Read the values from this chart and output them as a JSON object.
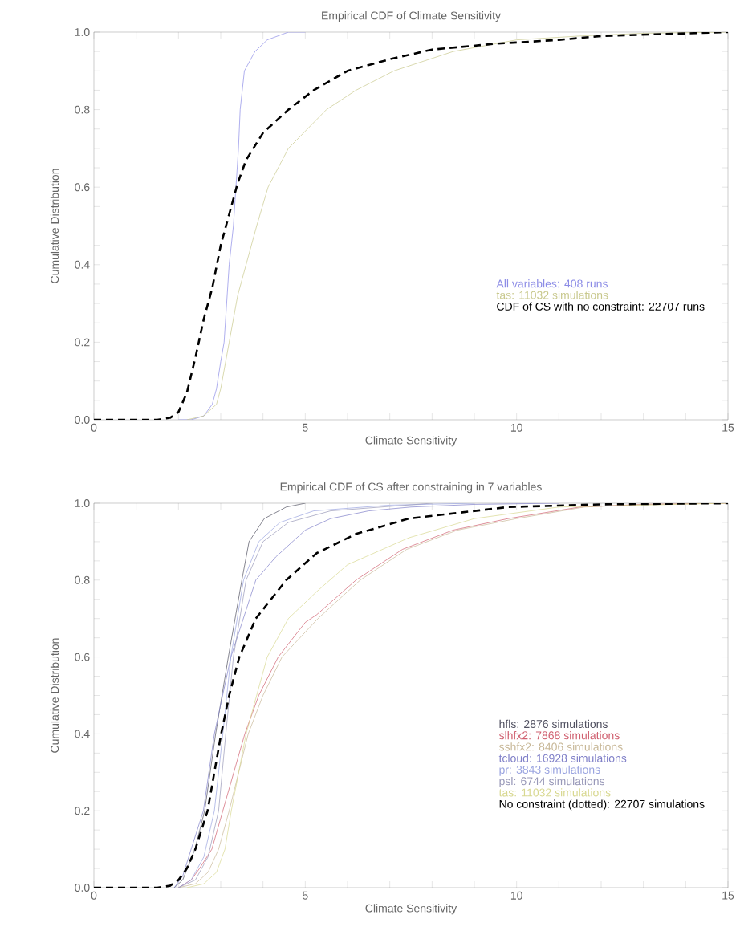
{
  "chart_data": [
    {
      "type": "line",
      "title": "Empirical CDF of Climate Sensitivity",
      "xlabel": "Climate Sensitivity",
      "ylabel": "Cumulative Distribution",
      "xlim": [
        0,
        15
      ],
      "ylim": [
        0,
        1
      ],
      "xticks": [
        0,
        {
          "value": 1,
          "label": null
        },
        {
          "value": 2,
          "label": null
        },
        {
          "value": 3,
          "label": null
        },
        {
          "value": 4,
          "label": null
        },
        5,
        {
          "value": 6,
          "label": null
        },
        {
          "value": 7,
          "label": null
        },
        {
          "value": 8,
          "label": null
        },
        {
          "value": 9,
          "label": null
        },
        10,
        {
          "value": 11,
          "label": null
        },
        {
          "value": 12,
          "label": null
        },
        {
          "value": 13,
          "label": null
        },
        {
          "value": 14,
          "label": null
        },
        15
      ],
      "yticks": [
        {
          "value": 0,
          "label": "0.0"
        },
        {
          "value": 0.05,
          "label": null
        },
        {
          "value": 0.1,
          "label": null
        },
        {
          "value": 0.15,
          "label": null
        },
        {
          "value": 0.2,
          "label": "0.2"
        },
        {
          "value": 0.25,
          "label": null
        },
        {
          "value": 0.3,
          "label": null
        },
        {
          "value": 0.35,
          "label": null
        },
        {
          "value": 0.4,
          "label": "0.4"
        },
        {
          "value": 0.45,
          "label": null
        },
        {
          "value": 0.5,
          "label": null
        },
        {
          "value": 0.55,
          "label": null
        },
        {
          "value": 0.6,
          "label": "0.6"
        },
        {
          "value": 0.65,
          "label": null
        },
        {
          "value": 0.7,
          "label": null
        },
        {
          "value": 0.75,
          "label": null
        },
        {
          "value": 0.8,
          "label": "0.8"
        },
        {
          "value": 0.85,
          "label": null
        },
        {
          "value": 0.9,
          "label": null
        },
        {
          "value": 0.95,
          "label": null
        },
        {
          "value": 1,
          "label": "1.0"
        }
      ],
      "legend": "center right",
      "series": [
        {
          "name": "All variables: 408 runs",
          "color": "#8c8ce6",
          "line_style": "solid",
          "x": [
            2.0,
            2.3,
            2.6,
            2.8,
            2.9,
            3.0,
            3.08,
            3.2,
            3.3,
            3.36,
            3.42,
            3.46,
            3.56,
            3.81,
            4.1,
            4.6,
            5.0
          ],
          "values": [
            0,
            0,
            0.01,
            0.04,
            0.08,
            0.15,
            0.2,
            0.4,
            0.5,
            0.6,
            0.7,
            0.8,
            0.9,
            0.95,
            0.98,
            1.0,
            1.0
          ]
        },
        {
          "name": "tas: 11032 simulations",
          "color": "#c8c88c",
          "line_style": "solid",
          "x": [
            2.2,
            2.6,
            2.9,
            3.0,
            3.2,
            3.4,
            3.6,
            3.85,
            4.12,
            4.6,
            5.5,
            6.2,
            7.1,
            8.5,
            10,
            11.5,
            13,
            15
          ],
          "values": [
            0,
            0.01,
            0.04,
            0.08,
            0.2,
            0.32,
            0.4,
            0.5,
            0.6,
            0.7,
            0.8,
            0.85,
            0.9,
            0.95,
            0.98,
            0.99,
            0.997,
            1.0
          ]
        },
        {
          "name": "CDF of CS with no constraint: 22707 runs",
          "color": "#000000",
          "line_style": "dashed",
          "x": [
            0,
            1.5,
            1.8,
            2.0,
            2.2,
            2.4,
            2.6,
            2.8,
            3.0,
            3.2,
            3.4,
            3.6,
            4.0,
            4.6,
            5.2,
            6,
            7,
            8,
            9.5,
            11,
            12,
            13.5,
            15
          ],
          "values": [
            0,
            0,
            0.005,
            0.02,
            0.07,
            0.16,
            0.26,
            0.34,
            0.45,
            0.53,
            0.61,
            0.67,
            0.74,
            0.8,
            0.85,
            0.9,
            0.93,
            0.955,
            0.97,
            0.98,
            0.99,
            0.995,
            1.0
          ]
        }
      ]
    },
    {
      "type": "line",
      "title": "Empirical CDF of CS after constraining in 7 variables",
      "xlabel": "Climate Sensitivity",
      "ylabel": "Cumulative Distribution",
      "xlim": [
        0,
        15
      ],
      "ylim": [
        0,
        1
      ],
      "xticks": [
        0,
        {
          "value": 1,
          "label": null
        },
        {
          "value": 2,
          "label": null
        },
        {
          "value": 3,
          "label": null
        },
        {
          "value": 4,
          "label": null
        },
        5,
        {
          "value": 6,
          "label": null
        },
        {
          "value": 7,
          "label": null
        },
        {
          "value": 8,
          "label": null
        },
        {
          "value": 9,
          "label": null
        },
        10,
        {
          "value": 11,
          "label": null
        },
        {
          "value": 12,
          "label": null
        },
        {
          "value": 13,
          "label": null
        },
        {
          "value": 14,
          "label": null
        },
        15
      ],
      "yticks": [
        {
          "value": 0,
          "label": "0.0"
        },
        {
          "value": 0.05,
          "label": null
        },
        {
          "value": 0.1,
          "label": null
        },
        {
          "value": 0.15,
          "label": null
        },
        {
          "value": 0.2,
          "label": "0.2"
        },
        {
          "value": 0.25,
          "label": null
        },
        {
          "value": 0.3,
          "label": null
        },
        {
          "value": 0.35,
          "label": null
        },
        {
          "value": 0.4,
          "label": "0.4"
        },
        {
          "value": 0.45,
          "label": null
        },
        {
          "value": 0.5,
          "label": null
        },
        {
          "value": 0.55,
          "label": null
        },
        {
          "value": 0.6,
          "label": "0.6"
        },
        {
          "value": 0.65,
          "label": null
        },
        {
          "value": 0.7,
          "label": null
        },
        {
          "value": 0.75,
          "label": null
        },
        {
          "value": 0.8,
          "label": "0.8"
        },
        {
          "value": 0.85,
          "label": null
        },
        {
          "value": 0.9,
          "label": null
        },
        {
          "value": 0.95,
          "label": null
        },
        {
          "value": 1,
          "label": "1.0"
        }
      ],
      "legend": "center right",
      "series": [
        {
          "name": "hfls: 2876 simulations",
          "color": "#505060",
          "line_style": "solid",
          "x": [
            1.9,
            2.1,
            2.39,
            2.62,
            2.88,
            3.18,
            3.5,
            3.67,
            4.03,
            4.55,
            5.0
          ],
          "values": [
            0,
            0.02,
            0.1,
            0.2,
            0.4,
            0.6,
            0.8,
            0.9,
            0.96,
            0.99,
            1.0
          ]
        },
        {
          "name": "slhfx2: 7868 simulations",
          "color": "#d06070",
          "line_style": "solid",
          "x": [
            2.0,
            2.3,
            2.5,
            2.79,
            3.05,
            3.57,
            3.9,
            4.36,
            5.0,
            5.27,
            6.2,
            7.3,
            8.5,
            9.8,
            11.5,
            13,
            15
          ],
          "values": [
            0,
            0.02,
            0.05,
            0.1,
            0.2,
            0.4,
            0.5,
            0.6,
            0.69,
            0.71,
            0.8,
            0.88,
            0.93,
            0.96,
            0.99,
            0.997,
            1.0
          ]
        },
        {
          "name": "sshfx2: 8406 simulations",
          "color": "#c8b898",
          "line_style": "solid",
          "x": [
            2.0,
            2.4,
            2.7,
            2.95,
            3.2,
            3.65,
            4.0,
            4.45,
            5.3,
            6.3,
            7.4,
            8.6,
            10,
            11.6,
            13,
            15
          ],
          "values": [
            0,
            0.01,
            0.04,
            0.1,
            0.2,
            0.4,
            0.5,
            0.6,
            0.7,
            0.8,
            0.88,
            0.93,
            0.96,
            0.99,
            0.997,
            1.0
          ]
        },
        {
          "name": "tcloud: 16928 simulations",
          "color": "#8080c8",
          "line_style": "solid",
          "x": [
            1.9,
            2.1,
            2.3,
            2.59,
            2.85,
            3.24,
            3.83,
            4.3,
            5.0,
            5.6,
            6.5,
            7.5,
            9,
            11
          ],
          "values": [
            0,
            0.03,
            0.1,
            0.2,
            0.4,
            0.6,
            0.8,
            0.86,
            0.93,
            0.96,
            0.98,
            0.99,
            0.997,
            1.0
          ]
        },
        {
          "name": "pr: 3843 simulations",
          "color": "#9aa4e0",
          "line_style": "solid",
          "x": [
            2.0,
            2.3,
            2.6,
            2.85,
            3.05,
            3.24,
            3.54,
            3.9,
            4.4,
            5.2,
            7,
            9
          ],
          "values": [
            0,
            0.02,
            0.08,
            0.2,
            0.4,
            0.6,
            0.8,
            0.9,
            0.95,
            0.98,
            0.995,
            1.0
          ]
        },
        {
          "name": "psl: 6744 simulations",
          "color": "#9898b8",
          "line_style": "solid",
          "x": [
            2.0,
            2.4,
            2.7,
            2.95,
            3.12,
            3.3,
            3.6,
            4.0,
            4.6,
            5.6,
            8
          ],
          "values": [
            0,
            0.02,
            0.08,
            0.2,
            0.4,
            0.6,
            0.8,
            0.9,
            0.95,
            0.98,
            1.0
          ]
        },
        {
          "name": "tas: 11032 simulations",
          "color": "#d8d890",
          "line_style": "solid",
          "x": [
            2.2,
            2.6,
            2.9,
            3.1,
            3.25,
            3.6,
            4.1,
            4.6,
            5.27,
            6.0,
            7.45,
            9,
            11,
            15
          ],
          "values": [
            0,
            0.01,
            0.04,
            0.1,
            0.2,
            0.4,
            0.6,
            0.7,
            0.77,
            0.84,
            0.91,
            0.96,
            0.99,
            1.0
          ]
        },
        {
          "name": "No constraint (dotted): 22707 simulations",
          "color": "#000000",
          "line_style": "dashed",
          "x": [
            0,
            1.5,
            1.8,
            2.0,
            2.2,
            2.4,
            2.69,
            3.01,
            3.2,
            3.44,
            3.83,
            4.55,
            5.27,
            6.2,
            7.45,
            9.8,
            12,
            15
          ],
          "values": [
            0,
            0,
            0.005,
            0.02,
            0.05,
            0.1,
            0.2,
            0.4,
            0.5,
            0.6,
            0.7,
            0.8,
            0.87,
            0.92,
            0.96,
            0.99,
            0.997,
            1.0
          ]
        }
      ]
    }
  ]
}
